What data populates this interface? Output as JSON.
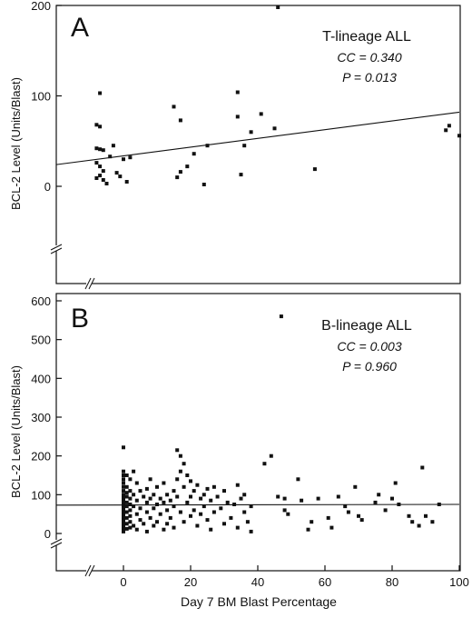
{
  "figure": {
    "xlabel": "Day 7 BM Blast Percentage"
  },
  "chart_data": [
    {
      "type": "scatter",
      "panel": "A",
      "legend_title": "T-lineage ALL",
      "stat_cc": "CC = 0.340",
      "stat_p": "P = 0.013",
      "ylabel": "BCL-2 Level (Units/Blast)",
      "xlim": [
        0,
        100
      ],
      "ylim": [
        0,
        200
      ],
      "y_axis_break": true,
      "x_axis_break": true,
      "xticks": [],
      "yticks": [
        "0",
        "100",
        "200"
      ],
      "ytick_values": [
        0,
        100,
        200
      ],
      "fit_line": {
        "x0": -20,
        "y0": 24,
        "x1": 100,
        "y1": 82
      },
      "points": [
        [
          -7,
          103
        ],
        [
          -8,
          68
        ],
        [
          -7,
          66
        ],
        [
          -8,
          42
        ],
        [
          -7,
          41
        ],
        [
          -6,
          40
        ],
        [
          -8,
          26
        ],
        [
          -7,
          22
        ],
        [
          -6,
          17
        ],
        [
          -7,
          12
        ],
        [
          -8,
          9
        ],
        [
          -6,
          7
        ],
        [
          -5,
          3
        ],
        [
          -4,
          33
        ],
        [
          -3,
          45
        ],
        [
          -2,
          15
        ],
        [
          -1,
          11
        ],
        [
          0,
          30
        ],
        [
          1,
          5
        ],
        [
          2,
          32
        ],
        [
          15,
          88
        ],
        [
          16,
          10
        ],
        [
          17,
          73
        ],
        [
          17,
          16
        ],
        [
          19,
          22
        ],
        [
          21,
          36
        ],
        [
          24,
          2
        ],
        [
          25,
          45
        ],
        [
          34,
          104
        ],
        [
          34,
          77
        ],
        [
          35,
          13
        ],
        [
          36,
          45
        ],
        [
          38,
          60
        ],
        [
          41,
          80
        ],
        [
          45,
          64
        ],
        [
          46,
          198
        ],
        [
          57,
          19
        ],
        [
          96,
          62
        ],
        [
          97,
          67
        ],
        [
          100,
          56
        ]
      ]
    },
    {
      "type": "scatter",
      "panel": "B",
      "legend_title": "B-lineage ALL",
      "stat_cc": "CC = 0.003",
      "stat_p": "P = 0.960",
      "ylabel": "BCL-2 Level (Units/Blast)",
      "xlim": [
        0,
        100
      ],
      "ylim": [
        0,
        600
      ],
      "y_axis_break": true,
      "x_axis_break": true,
      "xticks": [
        "0",
        "20",
        "40",
        "60",
        "80",
        "100"
      ],
      "xtick_values": [
        0,
        20,
        40,
        60,
        80,
        100
      ],
      "yticks": [
        "0",
        "100",
        "200",
        "300",
        "400",
        "500",
        "600"
      ],
      "ytick_values": [
        0,
        100,
        200,
        300,
        400,
        500,
        600
      ],
      "fit_line": {
        "x0": -20,
        "y0": 73,
        "x1": 100,
        "y1": 75
      },
      "points": [
        [
          0,
          222
        ],
        [
          0,
          160
        ],
        [
          0,
          150
        ],
        [
          0,
          140
        ],
        [
          0,
          130
        ],
        [
          0,
          120
        ],
        [
          0,
          110
        ],
        [
          0,
          100
        ],
        [
          0,
          95
        ],
        [
          0,
          90
        ],
        [
          0,
          85
        ],
        [
          0,
          80
        ],
        [
          0,
          75
        ],
        [
          0,
          70
        ],
        [
          0,
          65
        ],
        [
          0,
          60
        ],
        [
          0,
          55
        ],
        [
          0,
          50
        ],
        [
          0,
          45
        ],
        [
          0,
          40
        ],
        [
          0,
          35
        ],
        [
          0,
          30
        ],
        [
          0,
          25
        ],
        [
          0,
          20
        ],
        [
          0,
          15
        ],
        [
          0,
          10
        ],
        [
          0,
          5
        ],
        [
          1,
          150
        ],
        [
          1,
          120
        ],
        [
          1,
          105
        ],
        [
          1,
          95
        ],
        [
          1,
          80
        ],
        [
          1,
          70
        ],
        [
          1,
          55
        ],
        [
          1,
          40
        ],
        [
          1,
          25
        ],
        [
          1,
          12
        ],
        [
          2,
          140
        ],
        [
          2,
          110
        ],
        [
          2,
          90
        ],
        [
          2,
          75
        ],
        [
          2,
          60
        ],
        [
          2,
          45
        ],
        [
          2,
          30
        ],
        [
          2,
          15
        ],
        [
          3,
          160
        ],
        [
          3,
          100
        ],
        [
          3,
          70
        ],
        [
          3,
          20
        ],
        [
          4,
          130
        ],
        [
          4,
          85
        ],
        [
          4,
          50
        ],
        [
          4,
          10
        ],
        [
          5,
          110
        ],
        [
          5,
          65
        ],
        [
          5,
          35
        ],
        [
          6,
          95
        ],
        [
          6,
          25
        ],
        [
          7,
          115
        ],
        [
          7,
          80
        ],
        [
          7,
          55
        ],
        [
          7,
          5
        ],
        [
          8,
          140
        ],
        [
          8,
          90
        ],
        [
          8,
          40
        ],
        [
          9,
          100
        ],
        [
          9,
          65
        ],
        [
          9,
          20
        ],
        [
          10,
          120
        ],
        [
          10,
          75
        ],
        [
          10,
          30
        ],
        [
          11,
          90
        ],
        [
          11,
          50
        ],
        [
          12,
          130
        ],
        [
          12,
          80
        ],
        [
          12,
          10
        ],
        [
          13,
          100
        ],
        [
          13,
          60
        ],
        [
          13,
          25
        ],
        [
          14,
          85
        ],
        [
          14,
          40
        ],
        [
          15,
          110
        ],
        [
          15,
          70
        ],
        [
          15,
          15
        ],
        [
          16,
          215
        ],
        [
          16,
          140
        ],
        [
          16,
          95
        ],
        [
          17,
          200
        ],
        [
          17,
          160
        ],
        [
          17,
          55
        ],
        [
          18,
          180
        ],
        [
          18,
          120
        ],
        [
          18,
          30
        ],
        [
          19,
          150
        ],
        [
          19,
          80
        ],
        [
          20,
          135
        ],
        [
          20,
          95
        ],
        [
          20,
          45
        ],
        [
          21,
          110
        ],
        [
          21,
          60
        ],
        [
          22,
          125
        ],
        [
          22,
          20
        ],
        [
          23,
          90
        ],
        [
          23,
          50
        ],
        [
          24,
          100
        ],
        [
          24,
          70
        ],
        [
          25,
          115
        ],
        [
          25,
          35
        ],
        [
          26,
          85
        ],
        [
          26,
          10
        ],
        [
          27,
          120
        ],
        [
          27,
          55
        ],
        [
          28,
          95
        ],
        [
          29,
          65
        ],
        [
          30,
          110
        ],
        [
          30,
          25
        ],
        [
          31,
          80
        ],
        [
          32,
          40
        ],
        [
          33,
          75
        ],
        [
          34,
          125
        ],
        [
          34,
          15
        ],
        [
          35,
          90
        ],
        [
          36,
          100
        ],
        [
          36,
          55
        ],
        [
          37,
          30
        ],
        [
          38,
          70
        ],
        [
          38,
          5
        ],
        [
          42,
          180
        ],
        [
          44,
          200
        ],
        [
          46,
          95
        ],
        [
          47,
          560
        ],
        [
          48,
          90
        ],
        [
          48,
          60
        ],
        [
          49,
          50
        ],
        [
          52,
          140
        ],
        [
          53,
          85
        ],
        [
          55,
          10
        ],
        [
          56,
          30
        ],
        [
          58,
          90
        ],
        [
          61,
          40
        ],
        [
          62,
          15
        ],
        [
          64,
          95
        ],
        [
          66,
          70
        ],
        [
          67,
          55
        ],
        [
          69,
          120
        ],
        [
          70,
          45
        ],
        [
          71,
          35
        ],
        [
          75,
          80
        ],
        [
          76,
          100
        ],
        [
          78,
          60
        ],
        [
          80,
          90
        ],
        [
          81,
          130
        ],
        [
          82,
          75
        ],
        [
          85,
          45
        ],
        [
          86,
          30
        ],
        [
          88,
          20
        ],
        [
          89,
          170
        ],
        [
          90,
          45
        ],
        [
          92,
          30
        ],
        [
          94,
          75
        ]
      ]
    }
  ]
}
